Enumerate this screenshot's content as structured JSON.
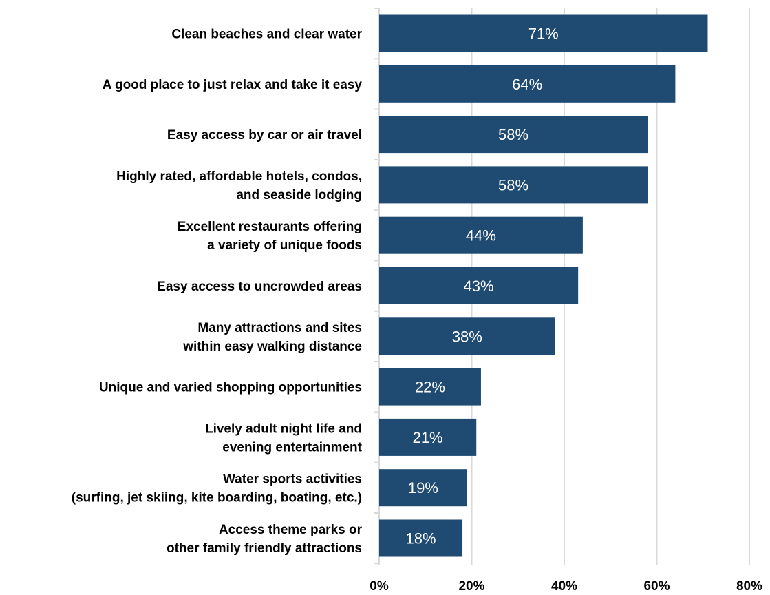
{
  "chart_data": {
    "type": "bar",
    "orientation": "horizontal",
    "categories": [
      [
        "Clean beaches and clear water"
      ],
      [
        "A good place to just relax and take it easy"
      ],
      [
        "Easy access by car or air travel"
      ],
      [
        "Highly rated, affordable hotels, condos,",
        "and seaside lodging"
      ],
      [
        "Excellent restaurants offering",
        "a variety of unique foods"
      ],
      [
        "Easy access to uncrowded areas"
      ],
      [
        "Many attractions and sites",
        "within easy walking distance"
      ],
      [
        "Unique and varied shopping opportunities"
      ],
      [
        "Lively adult night life and",
        "evening entertainment"
      ],
      [
        "Water sports activities",
        "(surfing, jet skiing, kite boarding, boating, etc.)"
      ],
      [
        "Access theme parks or",
        "other family friendly attractions"
      ]
    ],
    "values": [
      71,
      64,
      58,
      58,
      44,
      43,
      38,
      22,
      21,
      19,
      18
    ],
    "data_labels": [
      "71%",
      "64%",
      "58%",
      "58%",
      "44%",
      "43%",
      "38%",
      "22%",
      "21%",
      "19%",
      "18%"
    ],
    "xlim": [
      0,
      80
    ],
    "xticks": [
      0,
      20,
      40,
      60,
      80
    ],
    "xtick_labels": [
      "0%",
      "20%",
      "40%",
      "60%",
      "80%"
    ],
    "grid": true,
    "bar_color": "#1f4a72",
    "grid_color": "#d9d9d9"
  }
}
